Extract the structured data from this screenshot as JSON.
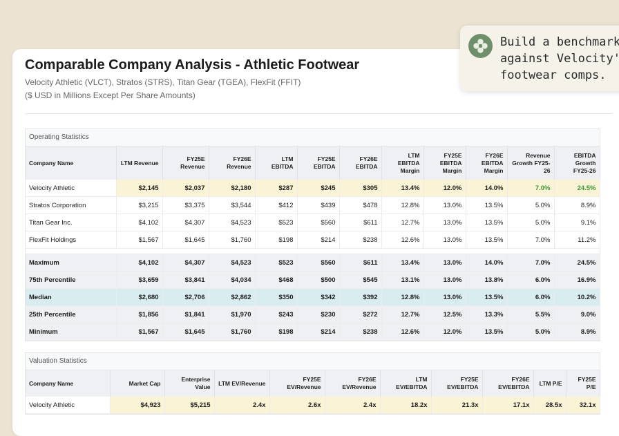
{
  "header": {
    "title": "Comparable Company Analysis - Athletic Footwear",
    "subtitle": "Velocity Athletic (VLCT), Stratos (STRS), Titan Gear (TGEA), FlexFit (FFIT)",
    "units_note": "($ USD in Millions Except Per Share Amounts)"
  },
  "operating": {
    "section_title": "Operating Statistics",
    "headers": [
      "Company Name",
      "LTM Revenue",
      "FY25E Revenue",
      "FY26E Revenue",
      "LTM EBITDA",
      "FY25E EBITDA",
      "FY26E EBITDA",
      "LTM EBITDA Margin",
      "FY25E EBITDA Margin",
      "FY26E EBITDA Margin",
      "Revenue Growth FY25-26",
      "EBITDA Growth FY25-26"
    ],
    "companies": [
      {
        "name": "Velocity Athletic",
        "cells": [
          "$2,145",
          "$2,037",
          "$2,180",
          "$287",
          "$245",
          "$305",
          "13.4%",
          "12.0%",
          "14.0%",
          "7.0%",
          "24.5%"
        ]
      },
      {
        "name": "Stratos Corporation",
        "cells": [
          "$3,215",
          "$3,375",
          "$3,544",
          "$412",
          "$439",
          "$478",
          "12.8%",
          "13.0%",
          "13.5%",
          "5.0%",
          "8.9%"
        ]
      },
      {
        "name": "Titan Gear Inc.",
        "cells": [
          "$4,102",
          "$4,307",
          "$4,523",
          "$523",
          "$560",
          "$611",
          "12.7%",
          "13.0%",
          "13.5%",
          "5.0%",
          "9.1%"
        ]
      },
      {
        "name": "FlexFit Holdings",
        "cells": [
          "$1,567",
          "$1,645",
          "$1,760",
          "$198",
          "$214",
          "$238",
          "12.6%",
          "13.0%",
          "13.5%",
          "7.0%",
          "11.2%"
        ]
      }
    ],
    "stats": [
      {
        "name": "Maximum",
        "cells": [
          "$4,102",
          "$4,307",
          "$4,523",
          "$523",
          "$560",
          "$611",
          "13.4%",
          "13.0%",
          "14.0%",
          "7.0%",
          "24.5%"
        ]
      },
      {
        "name": "75th Percentile",
        "cells": [
          "$3,659",
          "$3,841",
          "$4,034",
          "$468",
          "$500",
          "$545",
          "13.1%",
          "13.0%",
          "13.8%",
          "6.0%",
          "16.9%"
        ]
      },
      {
        "name": "Median",
        "cells": [
          "$2,680",
          "$2,706",
          "$2,862",
          "$350",
          "$342",
          "$392",
          "12.8%",
          "13.0%",
          "13.5%",
          "6.0%",
          "10.2%"
        ]
      },
      {
        "name": "25th Percentile",
        "cells": [
          "$1,856",
          "$1,841",
          "$1,970",
          "$243",
          "$230",
          "$272",
          "12.7%",
          "12.5%",
          "13.3%",
          "5.5%",
          "9.0%"
        ]
      },
      {
        "name": "Minimum",
        "cells": [
          "$1,567",
          "$1,645",
          "$1,760",
          "$198",
          "$214",
          "$238",
          "12.6%",
          "12.0%",
          "13.5%",
          "5.0%",
          "8.9%"
        ]
      }
    ]
  },
  "valuation": {
    "section_title": "Valuation Statistics",
    "headers": [
      "Company Name",
      "Market Cap",
      "Enterprise Value",
      "LTM EV/Revenue",
      "FY25E EV/Revenue",
      "FY26E EV/Revenue",
      "LTM EV/EBITDA",
      "FY25E EV/EBITDA",
      "FY26E EV/EBITDA",
      "LTM P/E",
      "FY25E P/E"
    ],
    "companies": [
      {
        "name": "Velocity Athletic",
        "cells": [
          "$4,923",
          "$5,215",
          "2.4x",
          "2.6x",
          "2.4x",
          "18.2x",
          "21.3x",
          "17.1x",
          "28.5x",
          "32.1x"
        ]
      }
    ]
  },
  "chat": {
    "avatar_icon": "assistant-flower-icon",
    "message_line1": "Build a benchmarking",
    "message_line2": "against Velocity's at",
    "message_line3": "footwear comps."
  },
  "colors": {
    "highlight_row": "#fbf3d5",
    "median_row": "#d9edf0",
    "positive_growth": "#3a9a3a",
    "avatar_bg": "#6f8f6a"
  }
}
